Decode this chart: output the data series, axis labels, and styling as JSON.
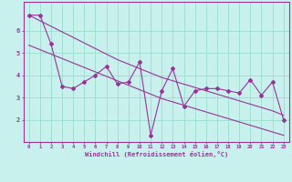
{
  "xlabel": "Windchill (Refroidissement éolien,°C)",
  "background_color": "#c8f0ec",
  "line_color": "#993399",
  "grid_color": "#99ddcc",
  "x_data": [
    0,
    1,
    2,
    3,
    4,
    5,
    6,
    7,
    8,
    9,
    10,
    11,
    12,
    13,
    14,
    15,
    16,
    17,
    18,
    19,
    20,
    21,
    22,
    23
  ],
  "y_main": [
    6.7,
    6.7,
    5.4,
    3.5,
    3.4,
    3.7,
    4.0,
    4.4,
    3.6,
    3.7,
    4.6,
    1.3,
    3.3,
    4.3,
    2.6,
    3.3,
    3.4,
    3.4,
    3.3,
    3.2,
    3.8,
    3.1,
    3.7,
    2.0
  ],
  "y_upper": [
    6.7,
    6.45,
    6.2,
    5.95,
    5.7,
    5.45,
    5.2,
    4.95,
    4.7,
    4.5,
    4.3,
    4.1,
    3.9,
    3.75,
    3.6,
    3.45,
    3.3,
    3.15,
    3.0,
    2.85,
    2.7,
    2.55,
    2.4,
    2.2
  ],
  "y_lower": [
    5.35,
    5.15,
    4.95,
    4.75,
    4.55,
    4.35,
    4.15,
    3.95,
    3.75,
    3.55,
    3.35,
    3.15,
    2.95,
    2.8,
    2.65,
    2.5,
    2.35,
    2.2,
    2.05,
    1.9,
    1.75,
    1.6,
    1.45,
    1.3
  ],
  "ylim": [
    1.0,
    7.3
  ],
  "xlim": [
    -0.5,
    23.5
  ],
  "yticks": [
    2,
    3,
    4,
    5,
    6
  ],
  "xticks": [
    0,
    1,
    2,
    3,
    4,
    5,
    6,
    7,
    8,
    9,
    10,
    11,
    12,
    13,
    14,
    15,
    16,
    17,
    18,
    19,
    20,
    21,
    22,
    23
  ]
}
